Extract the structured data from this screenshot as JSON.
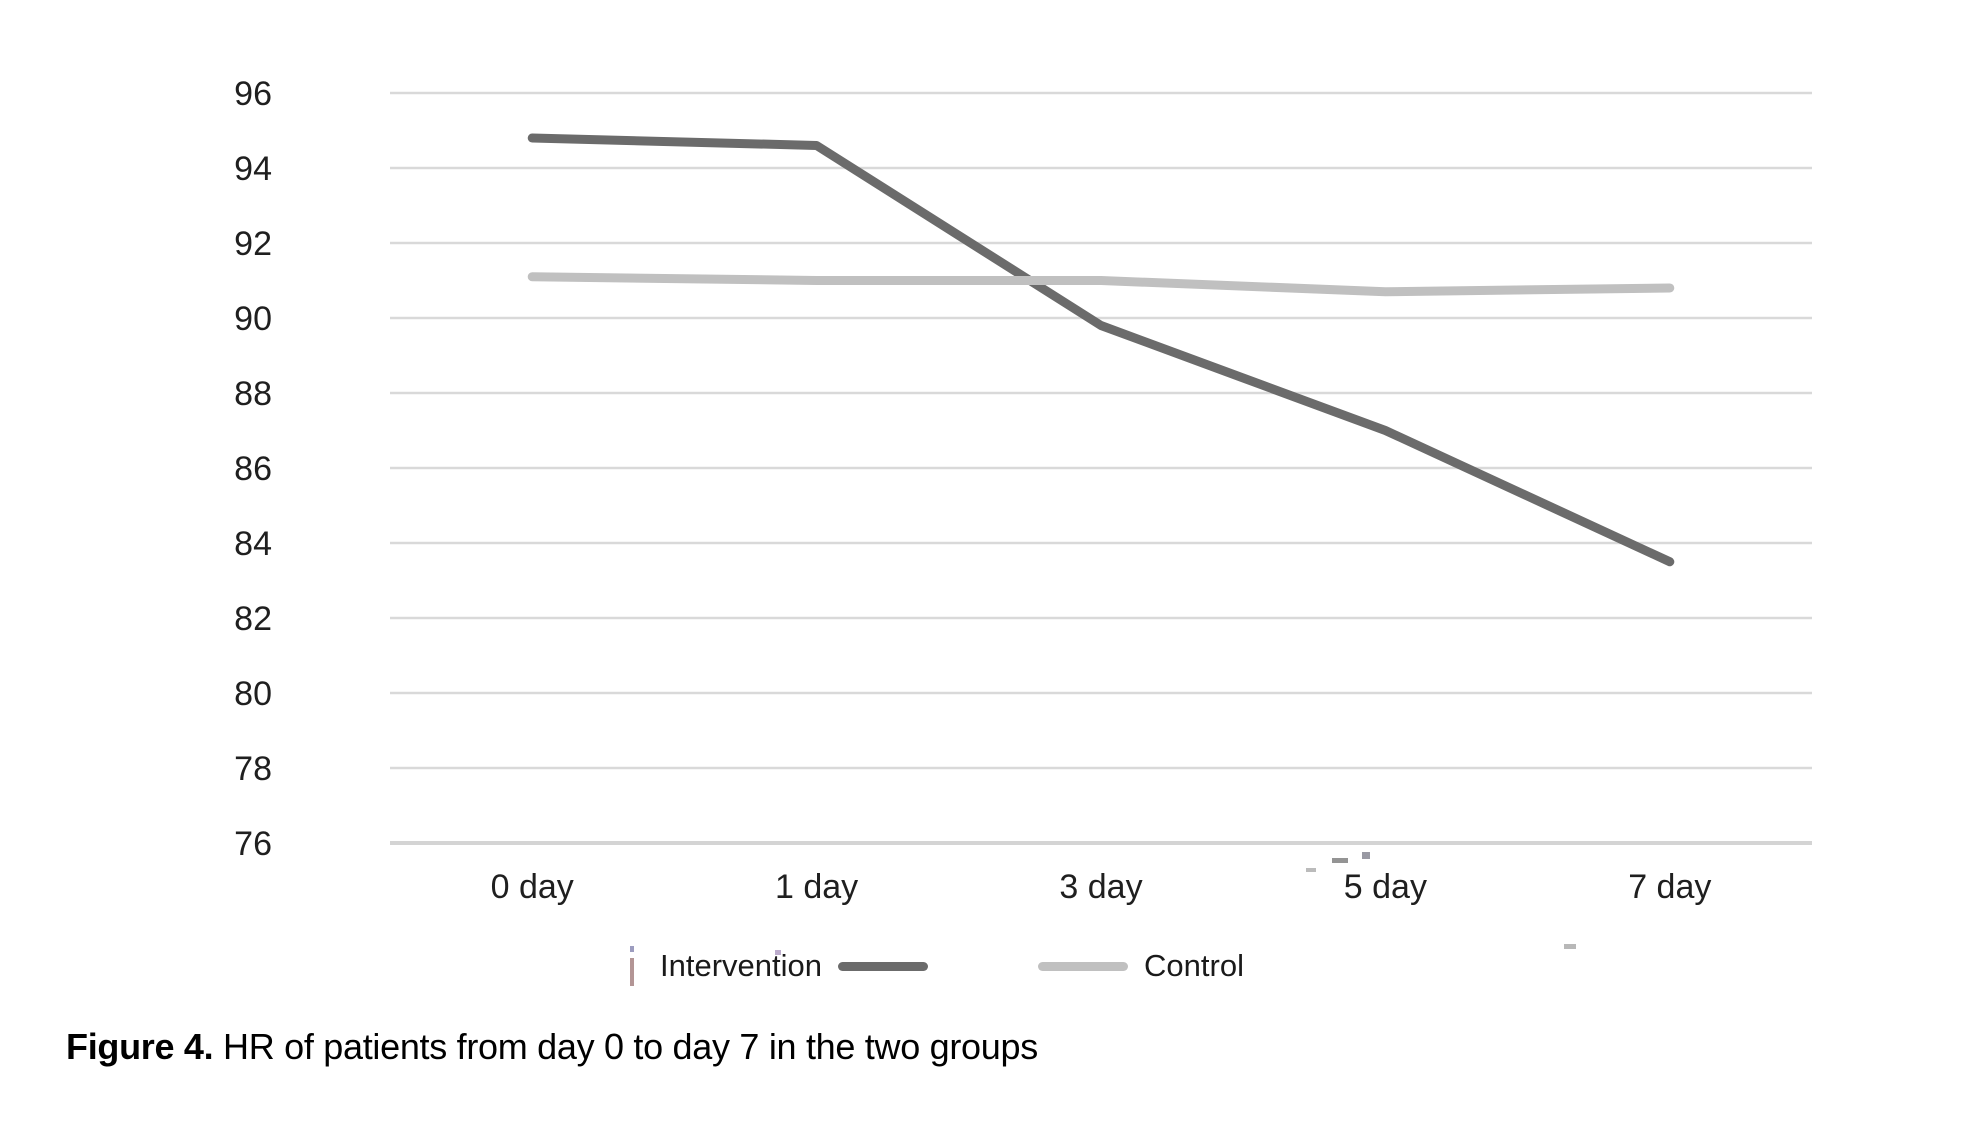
{
  "figure_caption": {
    "label": "Figure 4.",
    "text": " HR of patients from day 0 to day 7 in the two groups"
  },
  "chart_data": {
    "type": "line",
    "title": "",
    "xlabel": "",
    "ylabel": "",
    "categories": [
      "0 day",
      "1 day",
      "3 day",
      "5 day",
      "7 day"
    ],
    "series": [
      {
        "name": "Intervention",
        "values": [
          94.8,
          94.6,
          89.8,
          87.0,
          83.5
        ],
        "color": "#6b6b6b"
      },
      {
        "name": "Control",
        "values": [
          91.1,
          91.0,
          91.0,
          90.7,
          90.8
        ],
        "color": "#c0c0c0"
      }
    ],
    "ylim": [
      76,
      96
    ],
    "yticks": [
      96,
      94,
      92,
      90,
      88,
      86,
      84,
      82,
      80,
      78,
      76
    ],
    "grid": true,
    "gridline_color": "#d9d9d9",
    "axisline_color": "#d4d4d4",
    "legend_position": "bottom",
    "line_width": 9
  }
}
